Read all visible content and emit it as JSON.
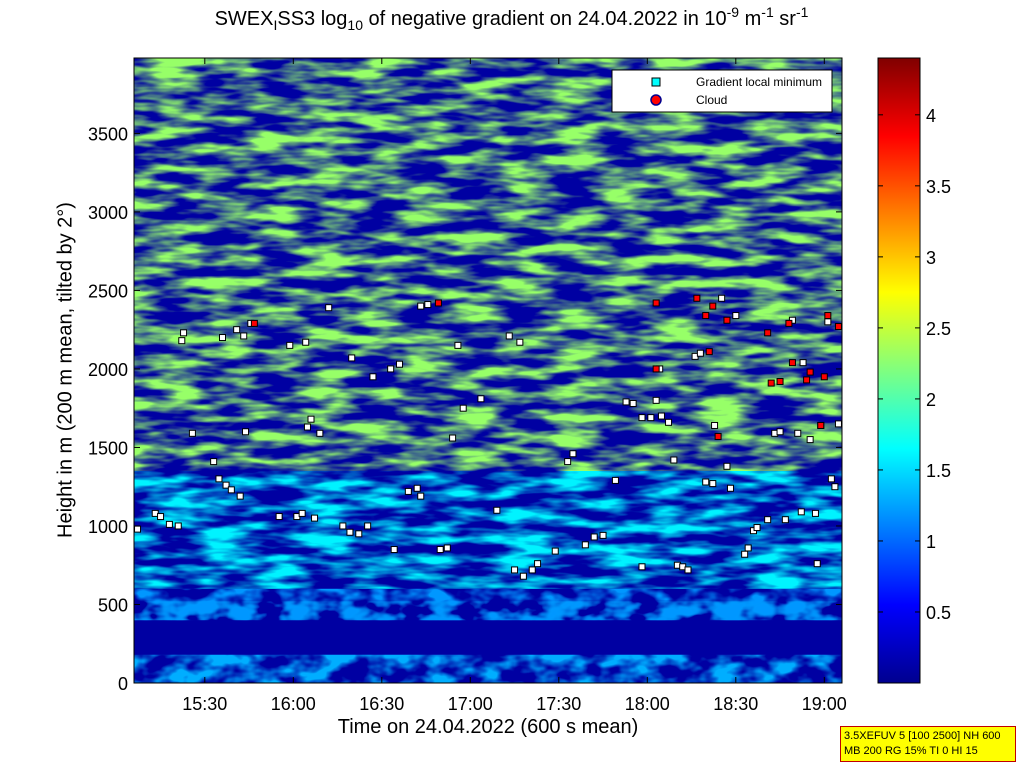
{
  "title": {
    "prefix": "SWEX",
    "sub_i": "I",
    "mid": "SS3 log",
    "sub_10": "10",
    "after": " of negative gradient on 24.04.2022 in 10",
    "sup_neg9": "-9",
    "m": " m",
    "sup_neg1a": "-1",
    "sr": " sr",
    "sup_neg1b": "-1"
  },
  "info_box": {
    "line1": "3.5XEFUV 5 [100 2500] NH 600",
    "line2": "MB 200 RG 15% TI 0 HI 15"
  },
  "chart_data": {
    "type": "heatmap",
    "xlabel": "Time on 24.04.2022 (600 s mean)",
    "ylabel": "Height in m (200 m mean, tilted by 2°)",
    "x_range_hours": [
      15.1,
      19.1
    ],
    "ylim": [
      0,
      3980
    ],
    "x_ticks": [
      "15:30",
      "16:00",
      "16:30",
      "17:00",
      "17:30",
      "18:00",
      "18:30",
      "19:00"
    ],
    "x_tick_hours": [
      15.5,
      16.0,
      16.5,
      17.0,
      17.5,
      18.0,
      18.5,
      19.0
    ],
    "y_ticks": [
      0,
      500,
      1000,
      1500,
      2000,
      2500,
      3000,
      3500
    ],
    "colorbar": {
      "range": [
        0,
        4.4
      ],
      "ticks": [
        0.5,
        1,
        1.5,
        2,
        2.5,
        3,
        3.5,
        4
      ],
      "colormap": "jet"
    },
    "legend": {
      "position": "top-right",
      "entries": [
        {
          "label": "Gradient local minimum",
          "marker": "square",
          "color": "#00ffff"
        },
        {
          "label": "Cloud",
          "marker": "circle",
          "color": "#ff0000"
        }
      ]
    },
    "layers": [
      {
        "level": 1.3,
        "ranges": [
          [
            0,
            180
          ],
          [
            400,
            520
          ]
        ]
      },
      {
        "level": 1.6,
        "ranges": [
          [
            600,
            1350
          ]
        ]
      },
      {
        "level": 1.2,
        "ranges": [
          [
            400,
            600
          ]
        ]
      },
      {
        "level": 2.3,
        "ranges": [
          [
            1350,
            3980
          ]
        ]
      }
    ],
    "gradient_minima": {
      "marker": "square",
      "points": [
        [
          15.12,
          980
        ],
        [
          15.22,
          1080
        ],
        [
          15.25,
          1060
        ],
        [
          15.3,
          1010
        ],
        [
          15.35,
          1000
        ],
        [
          15.37,
          2180
        ],
        [
          15.43,
          1590
        ],
        [
          15.38,
          2230
        ],
        [
          15.55,
          1410
        ],
        [
          15.58,
          1300
        ],
        [
          15.62,
          1260
        ],
        [
          15.65,
          1230
        ],
        [
          15.6,
          2200
        ],
        [
          15.68,
          2250
        ],
        [
          15.7,
          1190
        ],
        [
          15.72,
          2210
        ],
        [
          15.73,
          1600
        ],
        [
          15.76,
          2290
        ],
        [
          15.92,
          1060
        ],
        [
          15.98,
          2150
        ],
        [
          16.02,
          1060
        ],
        [
          16.05,
          1080
        ],
        [
          16.07,
          2170
        ],
        [
          16.08,
          1630
        ],
        [
          16.1,
          1680
        ],
        [
          16.12,
          1050
        ],
        [
          16.15,
          1590
        ],
        [
          16.2,
          2390
        ],
        [
          16.28,
          1000
        ],
        [
          16.32,
          960
        ],
        [
          16.33,
          2070
        ],
        [
          16.37,
          950
        ],
        [
          16.42,
          1000
        ],
        [
          16.45,
          1950
        ],
        [
          16.55,
          2000
        ],
        [
          16.6,
          2030
        ],
        [
          16.57,
          850
        ],
        [
          16.65,
          1220
        ],
        [
          16.7,
          1240
        ],
        [
          16.72,
          1190
        ],
        [
          16.72,
          2400
        ],
        [
          16.76,
          2410
        ],
        [
          16.83,
          850
        ],
        [
          16.87,
          860
        ],
        [
          16.9,
          1560
        ],
        [
          16.93,
          2150
        ],
        [
          16.96,
          1750
        ],
        [
          17.06,
          1810
        ],
        [
          17.15,
          1100
        ],
        [
          17.22,
          2210
        ],
        [
          17.28,
          2170
        ],
        [
          17.25,
          720
        ],
        [
          17.3,
          680
        ],
        [
          17.35,
          720
        ],
        [
          17.38,
          760
        ],
        [
          17.48,
          840
        ],
        [
          17.55,
          1410
        ],
        [
          17.58,
          1460
        ],
        [
          17.65,
          880
        ],
        [
          17.7,
          930
        ],
        [
          17.75,
          940
        ],
        [
          17.82,
          1290
        ],
        [
          17.88,
          1790
        ],
        [
          17.92,
          1780
        ],
        [
          17.97,
          1690
        ],
        [
          18.02,
          1690
        ],
        [
          17.97,
          740
        ],
        [
          18.05,
          1800
        ],
        [
          18.07,
          2000
        ],
        [
          18.08,
          1700
        ],
        [
          18.12,
          1660
        ],
        [
          18.15,
          1420
        ],
        [
          18.17,
          750
        ],
        [
          18.2,
          740
        ],
        [
          18.23,
          720
        ],
        [
          18.27,
          2080
        ],
        [
          18.3,
          2100
        ],
        [
          18.33,
          1280
        ],
        [
          18.37,
          1270
        ],
        [
          18.38,
          1640
        ],
        [
          18.42,
          2450
        ],
        [
          18.45,
          1380
        ],
        [
          18.47,
          1240
        ],
        [
          18.5,
          2340
        ],
        [
          18.55,
          820
        ],
        [
          18.57,
          860
        ],
        [
          18.6,
          970
        ],
        [
          18.62,
          990
        ],
        [
          18.68,
          1040
        ],
        [
          18.72,
          1590
        ],
        [
          18.75,
          1600
        ],
        [
          18.78,
          1040
        ],
        [
          18.82,
          2310
        ],
        [
          18.85,
          1590
        ],
        [
          18.87,
          1090
        ],
        [
          18.88,
          2040
        ],
        [
          18.92,
          1550
        ],
        [
          18.95,
          1080
        ],
        [
          18.96,
          760
        ],
        [
          18.98,
          1640
        ],
        [
          19.02,
          2300
        ],
        [
          19.04,
          1300
        ],
        [
          19.06,
          1250
        ],
        [
          19.08,
          1650
        ]
      ]
    },
    "cloud": {
      "marker": "circle",
      "points": [
        [
          15.78,
          2290
        ],
        [
          16.82,
          2420
        ],
        [
          18.05,
          2420
        ],
        [
          18.05,
          2000
        ],
        [
          18.28,
          2450
        ],
        [
          18.33,
          2340
        ],
        [
          18.35,
          2110
        ],
        [
          18.37,
          2400
        ],
        [
          18.4,
          1570
        ],
        [
          18.45,
          2310
        ],
        [
          18.68,
          2230
        ],
        [
          18.7,
          1910
        ],
        [
          18.75,
          1920
        ],
        [
          18.8,
          2290
        ],
        [
          18.82,
          2040
        ],
        [
          18.9,
          1930
        ],
        [
          18.92,
          1980
        ],
        [
          18.98,
          1640
        ],
        [
          19.0,
          1950
        ],
        [
          19.02,
          2340
        ],
        [
          19.08,
          2270
        ]
      ]
    }
  }
}
